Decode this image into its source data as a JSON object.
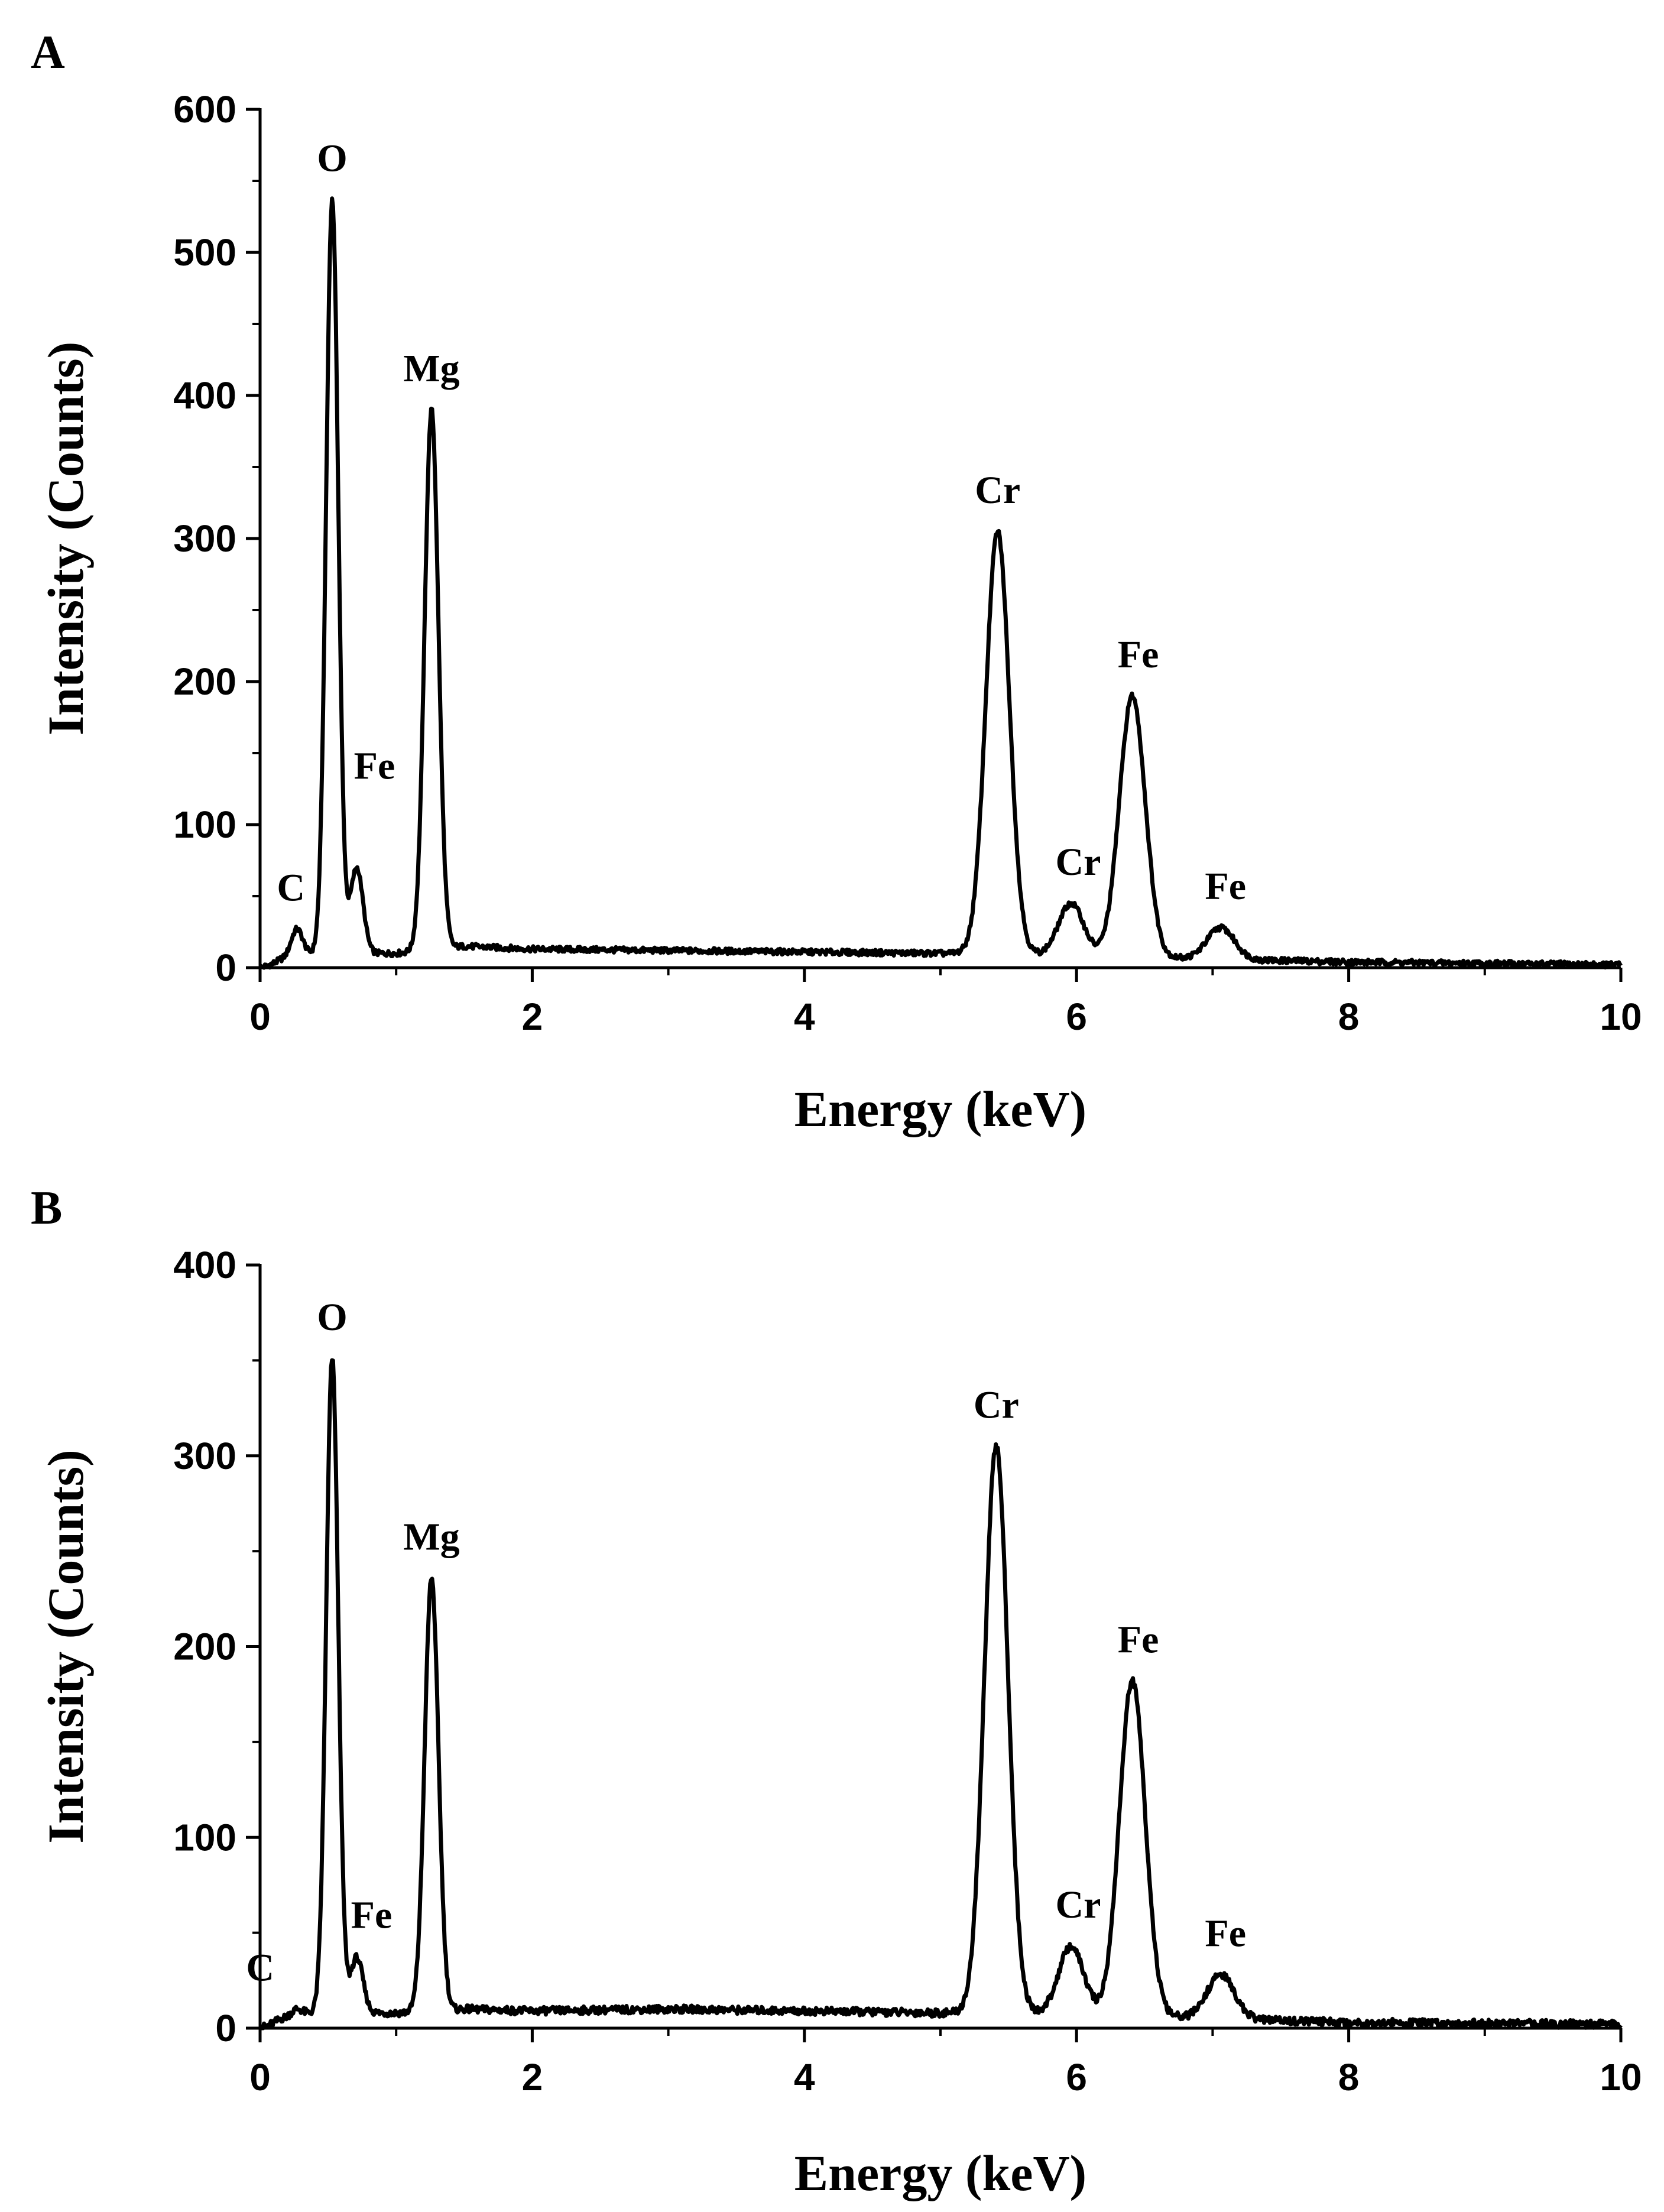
{
  "chart_data": [
    {
      "type": "line",
      "panel_label": "A",
      "xlabel": "Energy (keV)",
      "ylabel": "Intensity (Counts)",
      "xlim": [
        0,
        10
      ],
      "ylim": [
        0,
        600
      ],
      "xticks": [
        "0",
        "2",
        "4",
        "6",
        "8",
        "10"
      ],
      "yticks": [
        "0",
        "100",
        "200",
        "300",
        "400",
        "500",
        "600"
      ],
      "baseline": [
        [
          0.0,
          3
        ],
        [
          0.4,
          10
        ],
        [
          1.0,
          10
        ],
        [
          1.5,
          15
        ],
        [
          2.0,
          13
        ],
        [
          3.0,
          12
        ],
        [
          4.0,
          11
        ],
        [
          5.0,
          10
        ],
        [
          5.2,
          10
        ],
        [
          6.0,
          9
        ],
        [
          7.0,
          6
        ],
        [
          8.0,
          4
        ],
        [
          10.0,
          2
        ]
      ],
      "peaks": [
        {
          "element": "C",
          "energy": 0.27,
          "intensity": 27
        },
        {
          "element": "O",
          "energy": 0.53,
          "intensity": 537
        },
        {
          "element": "Fe",
          "energy": 0.71,
          "intensity": 70
        },
        {
          "element": "Mg",
          "energy": 1.26,
          "intensity": 390
        },
        {
          "element": "Cr",
          "energy": 5.42,
          "intensity": 305
        },
        {
          "element": "Cr",
          "energy": 5.96,
          "intensity": 45
        },
        {
          "element": "Fe",
          "energy": 6.41,
          "intensity": 190
        },
        {
          "element": "Fe",
          "energy": 7.06,
          "intensity": 28
        }
      ]
    },
    {
      "type": "line",
      "panel_label": "B",
      "xlabel": "Energy (keV)",
      "ylabel": "Intensity (Counts)",
      "xlim": [
        0,
        10
      ],
      "ylim": [
        0,
        400
      ],
      "xticks": [
        "0",
        "2",
        "4",
        "6",
        "8",
        "10"
      ],
      "yticks": [
        "0",
        "100",
        "200",
        "300",
        "400"
      ],
      "baseline": [
        [
          0.0,
          3
        ],
        [
          0.4,
          8
        ],
        [
          1.0,
          8
        ],
        [
          1.5,
          10
        ],
        [
          2.0,
          9
        ],
        [
          3.0,
          10
        ],
        [
          4.0,
          9
        ],
        [
          5.0,
          8
        ],
        [
          5.2,
          8
        ],
        [
          6.0,
          8
        ],
        [
          7.0,
          5
        ],
        [
          8.0,
          3
        ],
        [
          10.0,
          2
        ]
      ],
      "peaks": [
        {
          "element": "C",
          "energy": 0.27,
          "intensity": 10
        },
        {
          "element": "O",
          "energy": 0.53,
          "intensity": 351
        },
        {
          "element": "Fe",
          "energy": 0.71,
          "intensity": 37
        },
        {
          "element": "Mg",
          "energy": 1.26,
          "intensity": 236
        },
        {
          "element": "Cr",
          "energy": 5.41,
          "intensity": 305
        },
        {
          "element": "Cr",
          "energy": 5.96,
          "intensity": 43
        },
        {
          "element": "Fe",
          "energy": 6.41,
          "intensity": 182
        },
        {
          "element": "Fe",
          "energy": 7.06,
          "intensity": 28
        }
      ]
    }
  ]
}
